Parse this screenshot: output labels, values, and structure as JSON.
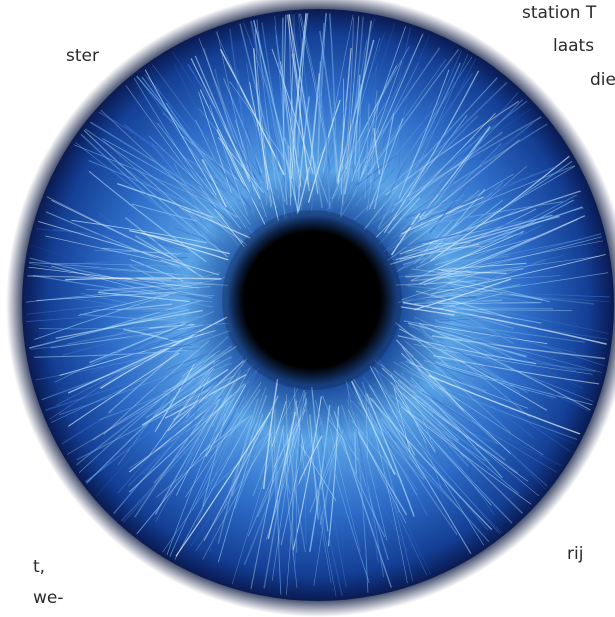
{
  "text_fragments": [
    {
      "text": "ster"
    },
    {
      "text": "station T"
    },
    {
      "text": "laats"
    },
    {
      "text": "die"
    },
    {
      "text": "rij"
    },
    {
      "text": "t,"
    },
    {
      "text": "we-"
    }
  ]
}
